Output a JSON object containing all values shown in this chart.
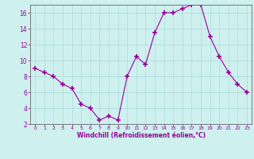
{
  "x": [
    0,
    1,
    2,
    3,
    4,
    5,
    6,
    7,
    8,
    9,
    10,
    11,
    12,
    13,
    14,
    15,
    16,
    17,
    18,
    19,
    20,
    21,
    22,
    23
  ],
  "y": [
    9,
    8.5,
    8,
    7,
    6.5,
    4.5,
    4,
    2.5,
    3,
    2.5,
    8,
    10.5,
    9.5,
    13.5,
    16,
    16,
    16.5,
    17,
    17,
    13,
    10.5,
    8.5,
    7,
    6
  ],
  "line_color": "#990099",
  "marker": "+",
  "marker_size": 4,
  "marker_lw": 1.2,
  "bg_color": "#cef0ee",
  "grid_color": "#aaddda",
  "xlabel": "Windchill (Refroidissement éolien,°C)",
  "xlabel_color": "#990099",
  "tick_color": "#990099",
  "spine_color": "#666666",
  "ylim": [
    2,
    17
  ],
  "xlim": [
    -0.5,
    23.5
  ],
  "yticks": [
    2,
    4,
    6,
    8,
    10,
    12,
    14,
    16
  ],
  "xticks": [
    0,
    1,
    2,
    3,
    4,
    5,
    6,
    7,
    8,
    9,
    10,
    11,
    12,
    13,
    14,
    15,
    16,
    17,
    18,
    19,
    20,
    21,
    22,
    23
  ],
  "figsize": [
    3.2,
    2.0
  ],
  "dpi": 100
}
